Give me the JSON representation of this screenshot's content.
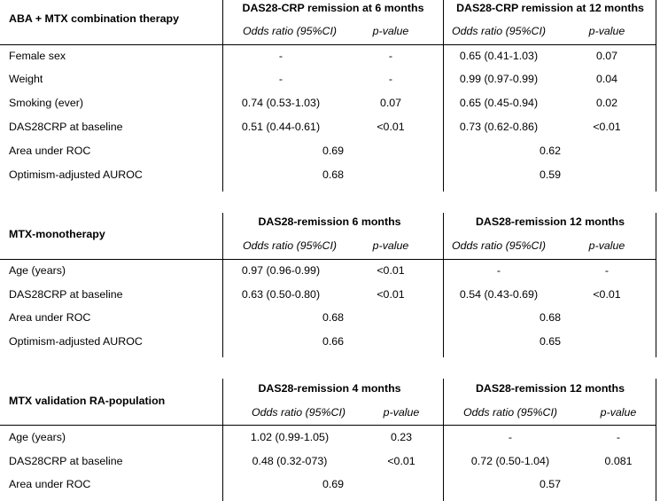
{
  "tables": [
    {
      "title": "ABA + MTX combination therapy",
      "group_headers": [
        "DAS28-CRP remission at 6 months",
        "DAS28-CRP remission at 12 months"
      ],
      "subheaders": [
        "Odds ratio (95%CI)",
        "p-value",
        "Odds ratio (95%CI)",
        "p-value"
      ],
      "rows": [
        {
          "label": "Female sex",
          "or1": "-",
          "p1": "-",
          "or2": "0.65 (0.41-1.03)",
          "p2": "0.07"
        },
        {
          "label": "Weight",
          "or1": "-",
          "p1": "-",
          "or2": "0.99 (0.97-0.99)",
          "p2": "0.04"
        },
        {
          "label": "Smoking (ever)",
          "or1": "0.74 (0.53-1.03)",
          "p1": "0.07",
          "or2": "0.65 (0.45-0.94)",
          "p2": "0.02"
        },
        {
          "label": "DAS28CRP at baseline",
          "or1": "0.51 (0.44-0.61)",
          "p1": "<0.01",
          "or2": "0.73 (0.62-0.86)",
          "p2": "<0.01"
        }
      ],
      "summary_rows": [
        {
          "label": "Area under ROC",
          "v1": "0.69",
          "v2": "0.62"
        },
        {
          "label": "Optimism-adjusted AUROC",
          "v1": "0.68",
          "v2": "0.59"
        }
      ]
    },
    {
      "title": "MTX-monotherapy",
      "group_headers": [
        "DAS28-remission 6 months",
        "DAS28-remission 12 months"
      ],
      "subheaders": [
        "Odds ratio (95%CI)",
        "p-value",
        "Odds ratio (95%CI)",
        "p-value"
      ],
      "rows": [
        {
          "label": "Age (years)",
          "or1": "0.97 (0.96-0.99)",
          "p1": "<0.01",
          "or2": "-",
          "p2": "-"
        },
        {
          "label": "DAS28CRP at baseline",
          "or1": "0.63 (0.50-0.80)",
          "p1": "<0.01",
          "or2": "0.54 (0.43-0.69)",
          "p2": "<0.01"
        }
      ],
      "summary_rows": [
        {
          "label": "Area under ROC",
          "v1": "0.68",
          "v2": "0.68"
        },
        {
          "label": "Optimism-adjusted AUROC",
          "v1": "0.66",
          "v2": "0.65"
        }
      ]
    },
    {
      "title": "MTX validation RA-population",
      "group_headers": [
        "DAS28-remission 4 months",
        "DAS28-remission 12 months"
      ],
      "subheaders": [
        "Odds ratio (95%CI)",
        "p-value",
        "Odds ratio (95%CI)",
        "p-value"
      ],
      "rows": [
        {
          "label": "Age (years)",
          "or1": "1.02 (0.99-1.05)",
          "p1": "0.23",
          "or2": "-",
          "p2": "-"
        },
        {
          "label": "DAS28CRP at baseline",
          "or1": "0.48 (0.32-073)",
          "p1": "<0.01",
          "or2": "0.72 (0.50-1.04)",
          "p2": "0.081"
        }
      ],
      "summary_rows": [
        {
          "label": "Area under ROC",
          "v1": "0.69",
          "v2": "0.57"
        }
      ]
    }
  ]
}
